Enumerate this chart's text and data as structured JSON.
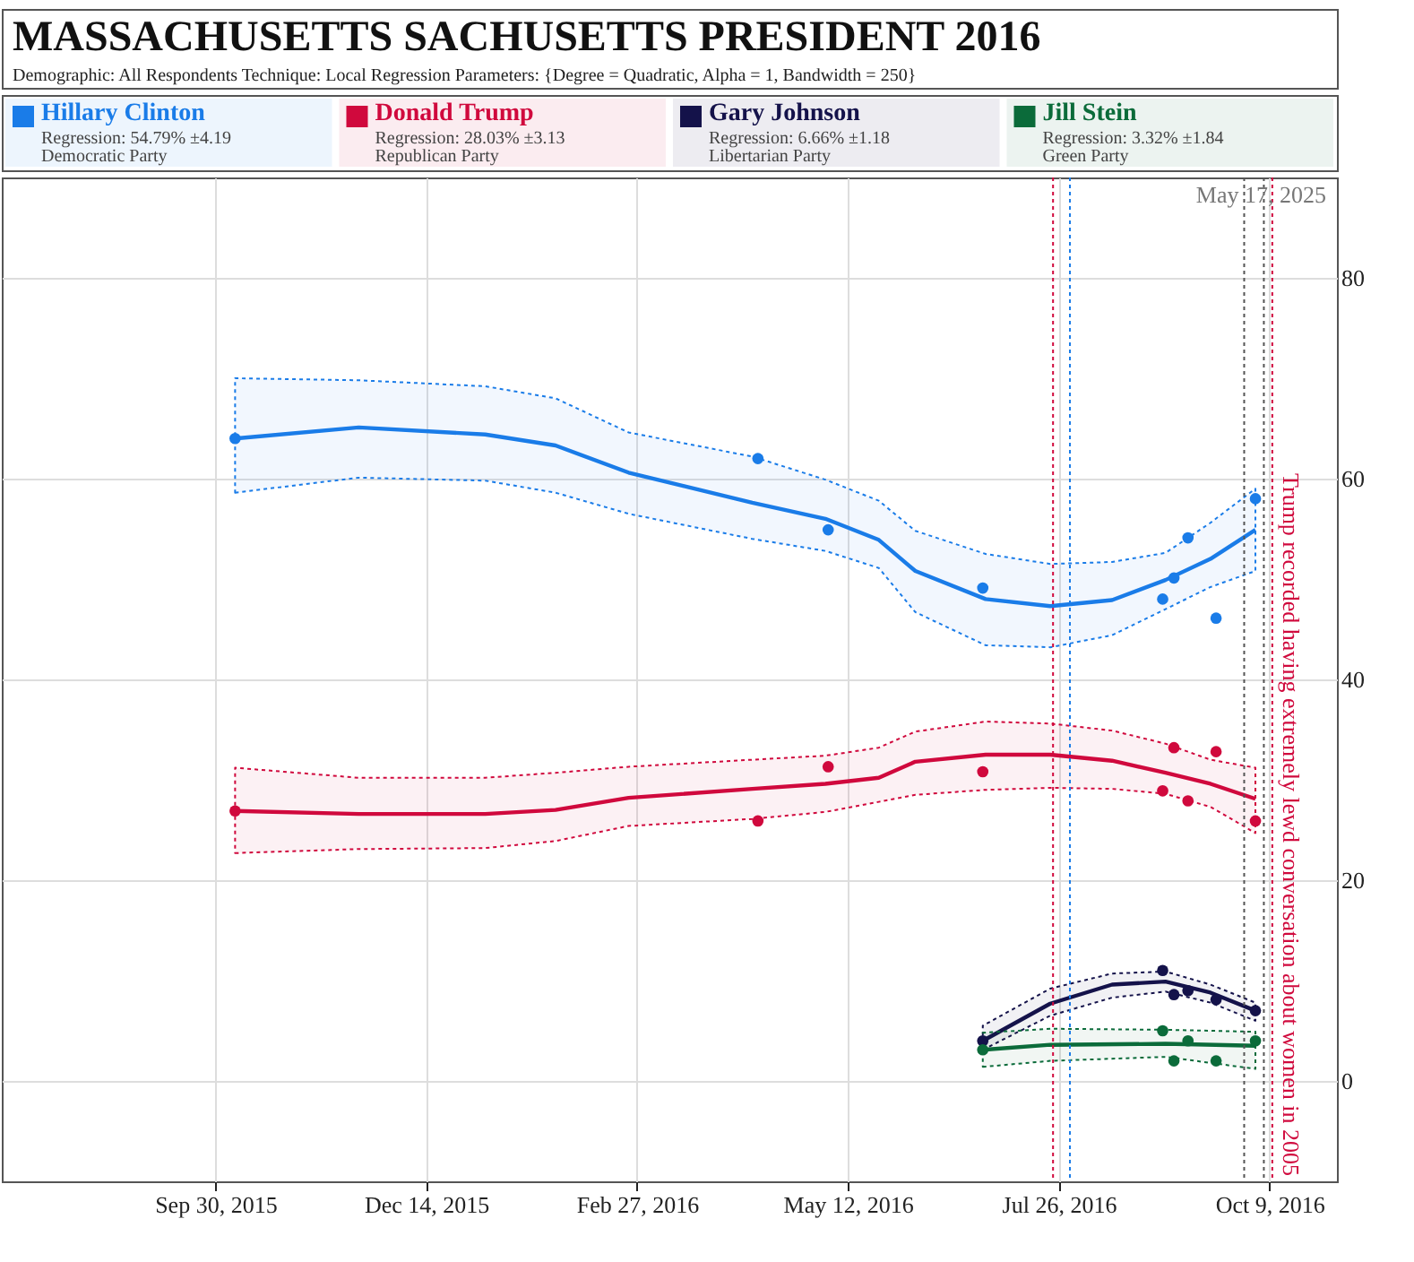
{
  "chart_data": {
    "type": "line",
    "title": "MASSACHUSETTS SACHUSETTS PRESIDENT 2016",
    "subtitle": "Demographic: All Respondents   Technique: Local Regression   Parameters: {Degree = Quadratic, Alpha = 1, Bandwidth = 250}",
    "annotations": [
      "Regression: 54.79% ±4.19",
      "Democratic Party",
      "Regression: 28.03% ±3.13",
      "Republican Party",
      "Regression: 6.66% ±1.18",
      "Libertarian Party",
      "Regression: 3.32% ±1.84",
      "Green Party",
      "May 17, 2025"
    ],
    "xlim": [
      "2015-07-16",
      "2016-11-02"
    ],
    "xticks": [
      {
        "value": "2015-09-30",
        "label": "Sep 30, 2015"
      },
      {
        "value": "2015-12-14",
        "label": "Dec 14, 2015"
      },
      {
        "value": "2016-02-27",
        "label": "Feb 27, 2016"
      },
      {
        "value": "2016-05-12",
        "label": "May 12, 2016"
      },
      {
        "value": "2016-07-26",
        "label": "Jul 26, 2016"
      },
      {
        "value": "2016-10-09",
        "label": "Oct 9, 2016"
      }
    ],
    "ylim": [
      -10,
      90
    ],
    "yticks": [
      0,
      20,
      40,
      60,
      80
    ],
    "grid": true,
    "legend": "top",
    "series": [
      {
        "name": "Hillary Clinton",
        "color": "#1a7ce8",
        "marker": "none",
        "x": [
          "2015-10-07",
          "2015-11-20",
          "2016-01-04",
          "2016-01-29",
          "2016-02-24",
          "2016-04-08",
          "2016-05-04",
          "2016-05-23",
          "2016-06-05",
          "2016-06-30",
          "2016-07-23",
          "2016-08-14",
          "2016-09-02",
          "2016-09-18",
          "2016-10-04"
        ],
        "values": [
          64.0,
          65.1,
          64.4,
          63.3,
          60.6,
          57.6,
          56.0,
          53.9,
          50.8,
          48.0,
          47.3,
          47.9,
          49.9,
          52.0,
          54.9
        ],
        "upper": [
          70.0,
          69.8,
          69.2,
          68.0,
          64.6,
          62.2,
          59.9,
          57.8,
          54.8,
          52.5,
          51.5,
          51.7,
          52.6,
          55.6,
          59.0
        ],
        "lower": [
          58.6,
          60.1,
          59.8,
          58.6,
          56.5,
          54.0,
          52.8,
          51.1,
          46.7,
          43.4,
          43.2,
          44.4,
          47.0,
          49.2,
          50.8
        ]
      },
      {
        "name": "Donald Trump",
        "color": "#d0093d",
        "marker": "none",
        "x": [
          "2015-10-07",
          "2015-11-20",
          "2016-01-04",
          "2016-01-29",
          "2016-02-24",
          "2016-04-08",
          "2016-05-04",
          "2016-05-23",
          "2016-06-05",
          "2016-06-30",
          "2016-07-23",
          "2016-08-14",
          "2016-09-02",
          "2016-09-18",
          "2016-10-04"
        ],
        "values": [
          26.9,
          26.6,
          26.6,
          27.0,
          28.2,
          29.1,
          29.6,
          30.2,
          31.8,
          32.5,
          32.5,
          31.9,
          30.7,
          29.6,
          28.1
        ],
        "upper": [
          31.2,
          30.2,
          30.2,
          30.7,
          31.3,
          32.0,
          32.4,
          33.2,
          34.8,
          35.8,
          35.6,
          34.9,
          33.6,
          32.0,
          31.2
        ],
        "lower": [
          22.7,
          23.1,
          23.2,
          23.9,
          25.4,
          26.1,
          26.8,
          27.8,
          28.5,
          29.0,
          29.2,
          29.1,
          28.6,
          27.3,
          24.7
        ]
      },
      {
        "name": "Gary Johnson",
        "color": "#14124a",
        "marker": "none",
        "x": [
          "2016-06-29",
          "2016-07-23",
          "2016-08-14",
          "2016-09-02",
          "2016-09-18",
          "2016-10-04"
        ],
        "values": [
          4.0,
          7.7,
          9.6,
          9.9,
          8.8,
          7.0
        ],
        "upper": [
          5.5,
          9.2,
          10.7,
          10.9,
          9.6,
          7.8
        ],
        "lower": [
          3.1,
          6.5,
          8.3,
          8.9,
          7.8,
          6.0
        ]
      },
      {
        "name": "Jill Stein",
        "color": "#0b6b3a",
        "marker": "none",
        "x": [
          "2016-06-29",
          "2016-07-23",
          "2016-09-02",
          "2016-10-04"
        ],
        "values": [
          3.1,
          3.6,
          3.7,
          3.5
        ],
        "upper": [
          4.8,
          5.2,
          5.1,
          4.9
        ],
        "lower": [
          1.4,
          2.0,
          2.4,
          1.2
        ]
      },
      {
        "type": "scatter",
        "color": "#1a7ce8",
        "marker": "circle",
        "x": [
          "2015-10-07",
          "2016-04-10",
          "2016-05-05",
          "2016-06-29",
          "2016-09-01",
          "2016-09-05",
          "2016-09-10",
          "2016-09-20",
          "2016-10-04"
        ],
        "values": [
          64.0,
          62.0,
          54.9,
          49.1,
          48.0,
          50.1,
          54.1,
          46.1,
          58.0
        ]
      },
      {
        "type": "scatter",
        "color": "#d0093d",
        "marker": "circle",
        "x": [
          "2015-10-07",
          "2016-04-10",
          "2016-05-05",
          "2016-06-29",
          "2016-09-01",
          "2016-09-05",
          "2016-09-10",
          "2016-09-20",
          "2016-10-04"
        ],
        "values": [
          26.9,
          25.9,
          31.3,
          30.8,
          28.9,
          33.2,
          27.9,
          32.8,
          25.9
        ]
      },
      {
        "type": "scatter",
        "color": "#14124a",
        "marker": "circle",
        "x": [
          "2016-06-29",
          "2016-09-01",
          "2016-09-05",
          "2016-09-10",
          "2016-09-20",
          "2016-10-04"
        ],
        "values": [
          4.0,
          11.0,
          8.6,
          9.0,
          8.1,
          7.0
        ]
      },
      {
        "type": "scatter",
        "color": "#0b6b3a",
        "marker": "circle",
        "x": [
          "2016-06-29",
          "2016-09-01",
          "2016-09-05",
          "2016-09-10",
          "2016-09-20",
          "2016-10-04"
        ],
        "values": [
          3.1,
          5.0,
          2.0,
          4.0,
          2.0,
          4.0
        ]
      }
    ],
    "ref_lines": [
      {
        "axis": "x",
        "value": "2016-07-24",
        "color": "#d0093d",
        "line_style": "dotted"
      },
      {
        "axis": "x",
        "value": "2016-07-30",
        "color": "#1a7ce8",
        "line_style": "dotted"
      },
      {
        "axis": "x",
        "value": "2016-09-30",
        "color": "#555555",
        "line_style": "dotted"
      },
      {
        "axis": "x",
        "value": "2016-10-07",
        "color": "#555555",
        "line_style": "dotted"
      },
      {
        "axis": "x",
        "value": "2016-10-10",
        "color": "#d0093d",
        "line_style": "dotted",
        "label": "Trump recorded having extremely lewd conversation about women in 2005"
      }
    ]
  }
}
